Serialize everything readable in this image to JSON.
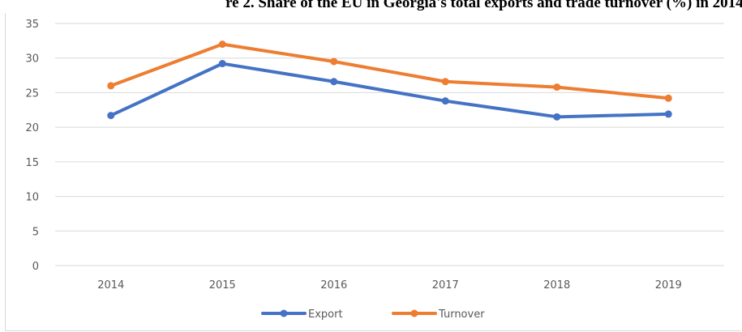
{
  "chart_data": {
    "type": "line",
    "title": "re 2. Share of the EU in Georgia's total exports and trade turnover (%) in 2014-",
    "categories": [
      "2014",
      "2015",
      "2016",
      "2017",
      "2018",
      "2019"
    ],
    "series": [
      {
        "name": "Export",
        "color": "#4472c4",
        "values": [
          21.7,
          29.2,
          26.6,
          23.8,
          21.5,
          21.9
        ]
      },
      {
        "name": "Turnover",
        "color": "#ed7d31",
        "values": [
          26.0,
          32.0,
          29.5,
          26.6,
          25.8,
          24.2
        ]
      }
    ],
    "ylim": [
      0,
      35
    ],
    "yticks": [
      0,
      5,
      10,
      15,
      20,
      25,
      30,
      35
    ],
    "grid": true,
    "legend": "bottom"
  }
}
